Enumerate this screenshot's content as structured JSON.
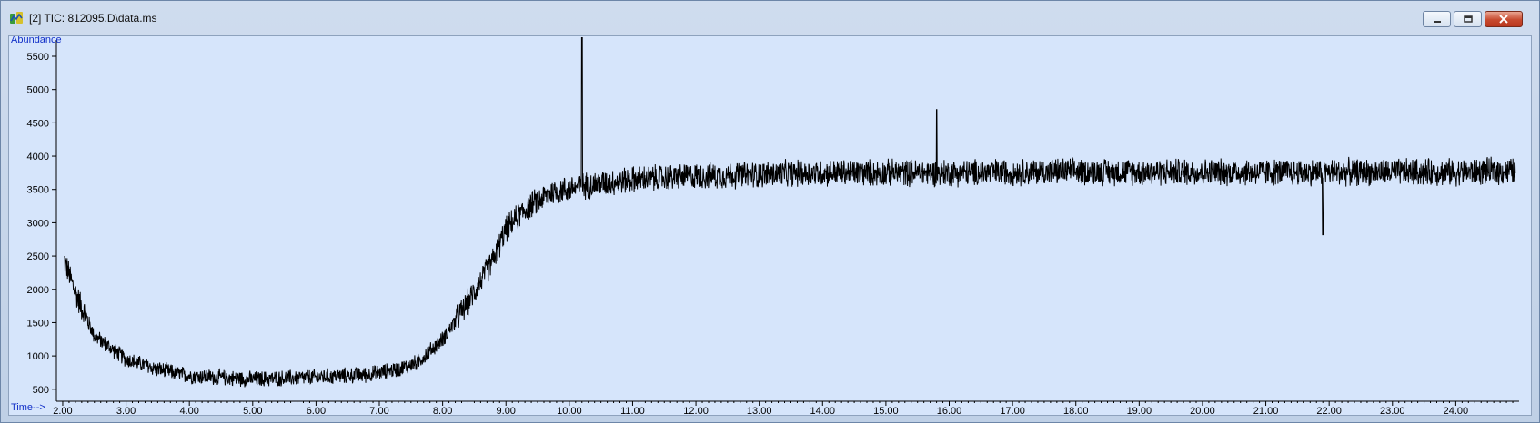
{
  "window": {
    "title": "[2] TIC: 812095.D\\data.ms",
    "buttons": {
      "minimize": "minimize-icon",
      "restore": "restore-icon",
      "close": "close-icon"
    }
  },
  "chart_data": {
    "type": "line",
    "title": "[2] TIC: 812095.D\\data.ms",
    "xlabel": "Time-->",
    "ylabel": "Abundance",
    "xlim": [
      1.9,
      25.0
    ],
    "ylim": [
      320,
      5800
    ],
    "x_ticks": [
      "2.00",
      "3.00",
      "4.00",
      "5.00",
      "6.00",
      "7.00",
      "8.00",
      "9.00",
      "10.00",
      "11.00",
      "12.00",
      "13.00",
      "14.00",
      "15.00",
      "16.00",
      "17.00",
      "18.00",
      "19.00",
      "20.00",
      "21.00",
      "22.00",
      "23.00",
      "24.00"
    ],
    "y_ticks": [
      "500",
      "1000",
      "1500",
      "2000",
      "2500",
      "3000",
      "3500",
      "4000",
      "4500",
      "5000",
      "5500"
    ],
    "grid": false,
    "series": [
      {
        "baseline": {
          "x": [
            1.9,
            2.0,
            2.2,
            2.5,
            3.0,
            3.5,
            4.0,
            5.0,
            6.0,
            6.8,
            7.3,
            7.6,
            8.0,
            8.4,
            8.8,
            9.0,
            9.3,
            9.7,
            10.2,
            11.0,
            12.0,
            14.0,
            16.0,
            18.0,
            20.0,
            22.0,
            24.0,
            25.0
          ],
          "y": [
            2750,
            2500,
            1950,
            1300,
            950,
            800,
            700,
            650,
            680,
            720,
            800,
            900,
            1250,
            1800,
            2450,
            2900,
            3200,
            3450,
            3550,
            3650,
            3700,
            3750,
            3750,
            3770,
            3760,
            3760,
            3760,
            3780
          ]
        },
        "noise_amplitude": 230,
        "spike": {
          "x": 10.2,
          "y": 5780
        },
        "peak_near_max": {
          "x": 15.8,
          "y": 4700
        },
        "dip_min": {
          "x": 21.9,
          "y": 2820
        }
      }
    ]
  }
}
